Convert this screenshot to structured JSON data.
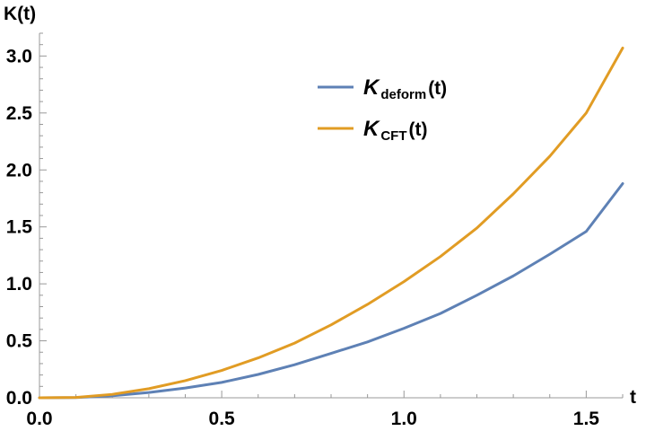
{
  "chart_data": {
    "type": "line",
    "title": "",
    "xlabel": "t",
    "ylabel": "K(t)",
    "xlim": [
      0,
      1.6
    ],
    "ylim": [
      0,
      3.2
    ],
    "xticks": [
      0.0,
      0.5,
      1.0,
      1.5
    ],
    "xtick_labels": [
      "0.0",
      "0.5",
      "1.0",
      "1.5"
    ],
    "yticks": [
      0.0,
      0.5,
      1.0,
      1.5,
      2.0,
      2.5,
      3.0
    ],
    "ytick_labels": [
      "0.0",
      "0.5",
      "1.0",
      "1.5",
      "2.0",
      "2.5",
      "3.0"
    ],
    "grid": false,
    "legend_position": "top-center",
    "x": [
      0.0,
      0.1,
      0.2,
      0.3,
      0.4,
      0.5,
      0.6,
      0.7,
      0.8,
      0.9,
      1.0,
      1.1,
      1.2,
      1.3,
      1.4,
      1.5,
      1.6
    ],
    "series": [
      {
        "legend_base": "K",
        "legend_sub": "deform",
        "legend_tail": "(t)",
        "color": "#5e81b5",
        "values": [
          0.0,
          0.002,
          0.018,
          0.046,
          0.086,
          0.135,
          0.205,
          0.29,
          0.39,
          0.49,
          0.61,
          0.74,
          0.9,
          1.07,
          1.26,
          1.46,
          1.88
        ]
      },
      {
        "legend_base": "K",
        "legend_sub": "CFT",
        "legend_tail": "(t)",
        "color": "#e19c24",
        "values": [
          0.0,
          0.003,
          0.03,
          0.08,
          0.15,
          0.24,
          0.35,
          0.48,
          0.64,
          0.82,
          1.02,
          1.24,
          1.49,
          1.79,
          2.12,
          2.5,
          3.07
        ]
      }
    ]
  }
}
